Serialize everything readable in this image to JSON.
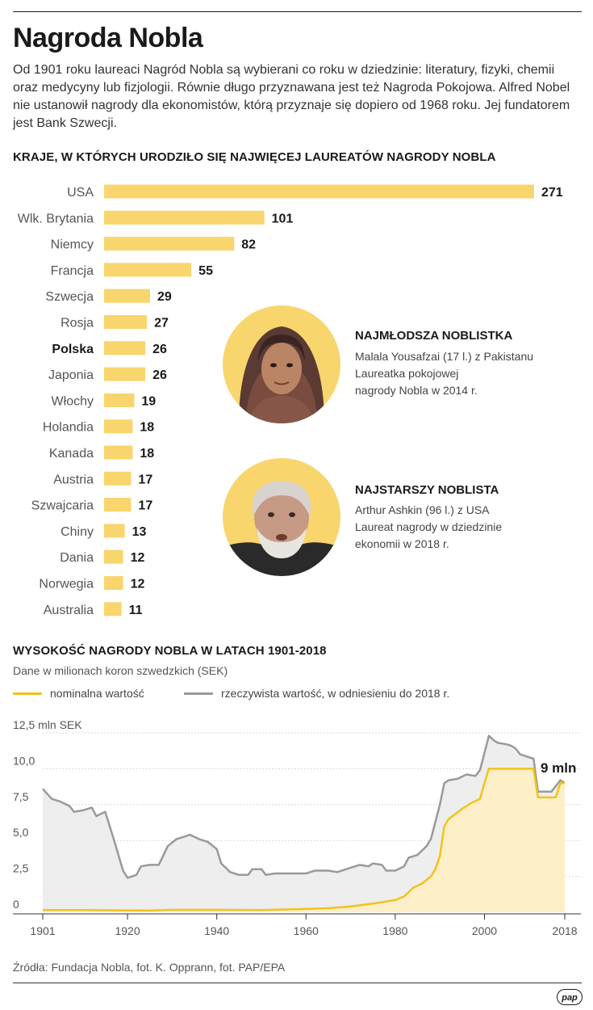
{
  "header": {
    "title": "Nagroda Nobla",
    "intro": "Od 1901 roku laureaci Nagród Nobla są wybierani co roku w dziedzinie: literatury, fizyki, chemii oraz medycyny lub fizjologii. Równie długo przyznawana jest też Nagroda Pokojowa. Alfred Nobel nie ustanowił nagrody dla ekonomistów, którą przyznaje się dopiero od 1968 roku. Jej fundatorem jest Bank Szwecji."
  },
  "colors": {
    "bar": "#f8d66d",
    "nominal_line": "#f3c21b",
    "nominal_fill": "#fdf0c8",
    "real_line": "#9a9a9a",
    "real_fill": "#eeeeee",
    "portrait_bg": "#f8d66d"
  },
  "callouts": [
    {
      "heading": "NAJMŁODSZA NOBLISTKA",
      "lines": [
        "Malala Yousafzai (17 l.) z Pakistanu",
        "Laureatka pokojowej",
        "nagrody Nobla w 2014 r."
      ]
    },
    {
      "heading": "NAJSTARSZY NOBLISTA",
      "lines": [
        "Arthur Ashkin (96 l.) z USA",
        "Laureat nagrody w dziedzinie",
        "ekonomii w 2018 r."
      ]
    }
  ],
  "chart_data": [
    {
      "type": "bar",
      "orientation": "horizontal",
      "title": "KRAJE, W KTÓRYCH URODZIŁO SIĘ NAJWIĘCEJ LAUREATÓW NAGRODY NOBLA",
      "categories": [
        "USA",
        "Wlk. Brytania",
        "Niemcy",
        "Francja",
        "Szwecja",
        "Rosja",
        "Polska",
        "Japonia",
        "Włochy",
        "Holandia",
        "Kanada",
        "Austria",
        "Szwajcaria",
        "Chiny",
        "Dania",
        "Norwegia",
        "Australia"
      ],
      "values": [
        271,
        101,
        82,
        55,
        29,
        27,
        26,
        26,
        19,
        18,
        18,
        17,
        17,
        13,
        12,
        12,
        11
      ],
      "highlighted_category": "Polska"
    },
    {
      "type": "area",
      "title": "WYSOKOŚĆ NAGRODY NOBLA W LATACH 1901-2018",
      "subtitle": "Dane w milionach koron szwedzkich (SEK)",
      "ylim": [
        0,
        12.5
      ],
      "y_ticks": [
        "0",
        "2,5",
        "5,0",
        "7,5",
        "10,0",
        "12,5 mln SEK"
      ],
      "y_tick_values": [
        0,
        2.5,
        5,
        7.5,
        10,
        12.5
      ],
      "x_ticks": [
        "1901",
        "1920",
        "1940",
        "1960",
        "1980",
        "2000",
        "2018"
      ],
      "x_tick_values": [
        1901,
        1920,
        1940,
        1960,
        1980,
        2000,
        2018
      ],
      "end_label": "9 mln",
      "series": [
        {
          "name": "rzeczywista wartość, w odniesieniu do 2018 r.",
          "points": [
            [
              1901,
              8.6
            ],
            [
              1903,
              7.9
            ],
            [
              1905,
              7.7
            ],
            [
              1907,
              7.4
            ],
            [
              1908,
              7.0
            ],
            [
              1910,
              7.1
            ],
            [
              1912,
              7.3
            ],
            [
              1913,
              6.7
            ],
            [
              1915,
              7.0
            ],
            [
              1917,
              5.0
            ],
            [
              1919,
              2.9
            ],
            [
              1920,
              2.4
            ],
            [
              1922,
              2.6
            ],
            [
              1923,
              3.2
            ],
            [
              1925,
              3.3
            ],
            [
              1927,
              3.3
            ],
            [
              1929,
              4.6
            ],
            [
              1931,
              5.1
            ],
            [
              1933,
              5.3
            ],
            [
              1934,
              5.4
            ],
            [
              1936,
              5.1
            ],
            [
              1938,
              4.9
            ],
            [
              1940,
              4.4
            ],
            [
              1941,
              3.4
            ],
            [
              1943,
              2.8
            ],
            [
              1945,
              2.6
            ],
            [
              1947,
              2.6
            ],
            [
              1948,
              3.0
            ],
            [
              1950,
              3.0
            ],
            [
              1951,
              2.6
            ],
            [
              1953,
              2.7
            ],
            [
              1955,
              2.7
            ],
            [
              1957,
              2.7
            ],
            [
              1960,
              2.7
            ],
            [
              1962,
              2.9
            ],
            [
              1965,
              2.9
            ],
            [
              1967,
              2.8
            ],
            [
              1970,
              3.1
            ],
            [
              1972,
              3.3
            ],
            [
              1974,
              3.2
            ],
            [
              1975,
              3.4
            ],
            [
              1977,
              3.3
            ],
            [
              1978,
              2.9
            ],
            [
              1980,
              2.9
            ],
            [
              1982,
              3.2
            ],
            [
              1983,
              3.8
            ],
            [
              1985,
              4.0
            ],
            [
              1987,
              4.6
            ],
            [
              1988,
              5.1
            ],
            [
              1990,
              7.5
            ],
            [
              1991,
              9.0
            ],
            [
              1992,
              9.2
            ],
            [
              1994,
              9.3
            ],
            [
              1996,
              9.6
            ],
            [
              1998,
              9.5
            ],
            [
              1999,
              9.9
            ],
            [
              2001,
              12.3
            ],
            [
              2002,
              12.0
            ],
            [
              2003,
              11.8
            ],
            [
              2005,
              11.7
            ],
            [
              2006,
              11.6
            ],
            [
              2007,
              11.4
            ],
            [
              2008,
              11.0
            ],
            [
              2009,
              10.9
            ],
            [
              2010,
              10.8
            ],
            [
              2011,
              10.7
            ],
            [
              2012,
              8.4
            ],
            [
              2014,
              8.4
            ],
            [
              2015,
              8.4
            ],
            [
              2017,
              9.2
            ],
            [
              2018,
              9.0
            ]
          ]
        },
        {
          "name": "nominalna wartość",
          "points": [
            [
              1901,
              0.15
            ],
            [
              1910,
              0.15
            ],
            [
              1920,
              0.13
            ],
            [
              1925,
              0.12
            ],
            [
              1930,
              0.17
            ],
            [
              1940,
              0.17
            ],
            [
              1950,
              0.16
            ],
            [
              1955,
              0.19
            ],
            [
              1960,
              0.23
            ],
            [
              1965,
              0.28
            ],
            [
              1970,
              0.4
            ],
            [
              1975,
              0.6
            ],
            [
              1977,
              0.7
            ],
            [
              1980,
              0.85
            ],
            [
              1982,
              1.1
            ],
            [
              1984,
              1.7
            ],
            [
              1986,
              2.0
            ],
            [
              1988,
              2.5
            ],
            [
              1989,
              3.0
            ],
            [
              1990,
              3.9
            ],
            [
              1991,
              6.0
            ],
            [
              1992,
              6.5
            ],
            [
              1995,
              7.2
            ],
            [
              1997,
              7.6
            ],
            [
              1999,
              7.9
            ],
            [
              2000,
              9.0
            ],
            [
              2001,
              10.0
            ],
            [
              2011,
              10.0
            ],
            [
              2012,
              8.0
            ],
            [
              2016,
              8.0
            ],
            [
              2017,
              9.0
            ],
            [
              2018,
              9.0
            ]
          ]
        }
      ]
    }
  ]
}
